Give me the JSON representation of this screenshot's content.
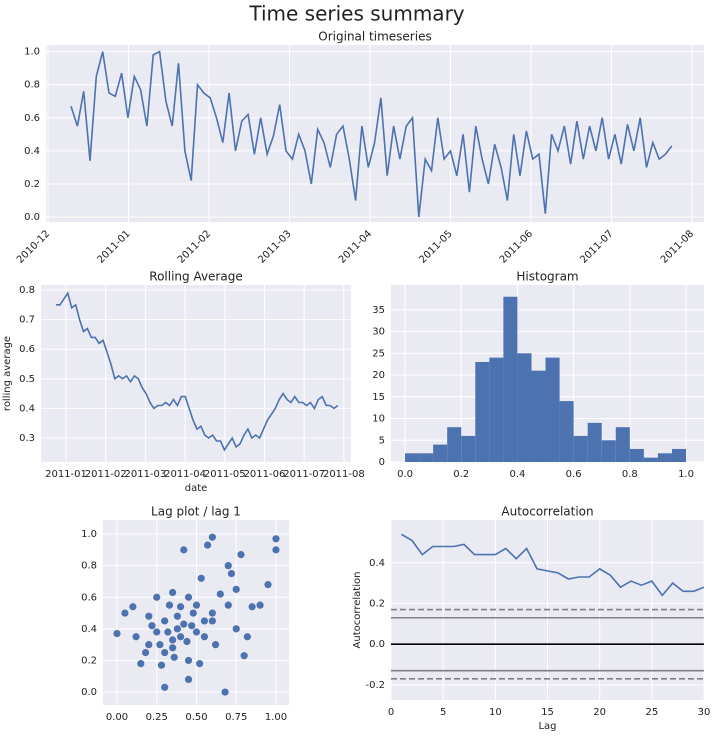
{
  "title": "Time series summary",
  "chart_data": [
    {
      "type": "line",
      "title": "Original timeseries",
      "color": "#4c72b0",
      "grid": true,
      "xticks": [
        "2010-12",
        "2011-01",
        "2011-02",
        "2011-03",
        "2011-04",
        "2011-05",
        "2011-06",
        "2011-07",
        "2011-08"
      ],
      "ylim": [
        -0.03,
        1.04
      ],
      "yticks": [
        {
          "value": 0,
          "label": "0.0"
        },
        0.2,
        0.4,
        0.6,
        0.8,
        {
          "value": 1,
          "label": "1.0"
        }
      ],
      "values": [
        0.67,
        0.55,
        0.76,
        0.34,
        0.85,
        1.0,
        0.75,
        0.73,
        0.87,
        0.6,
        0.85,
        0.77,
        0.55,
        0.98,
        1.0,
        0.7,
        0.55,
        0.93,
        0.4,
        0.22,
        0.8,
        0.75,
        0.72,
        0.6,
        0.45,
        0.75,
        0.4,
        0.58,
        0.62,
        0.38,
        0.6,
        0.38,
        0.49,
        0.68,
        0.4,
        0.35,
        0.5,
        0.4,
        0.2,
        0.53,
        0.45,
        0.3,
        0.5,
        0.55,
        0.35,
        0.1,
        0.55,
        0.3,
        0.45,
        0.72,
        0.25,
        0.55,
        0.35,
        0.55,
        0.6,
        0.0,
        0.35,
        0.28,
        0.6,
        0.35,
        0.4,
        0.25,
        0.5,
        0.15,
        0.55,
        0.35,
        0.2,
        0.44,
        0.3,
        0.1,
        0.5,
        0.25,
        0.52,
        0.35,
        0.38,
        0.02,
        0.5,
        0.4,
        0.55,
        0.32,
        0.58,
        0.35,
        0.55,
        0.4,
        0.6,
        0.35,
        0.5,
        0.32,
        0.56,
        0.4,
        0.6,
        0.3,
        0.45,
        0.35,
        0.38,
        0.43
      ]
    },
    {
      "type": "line",
      "title": "Rolling Average",
      "xlabel": "date",
      "ylabel": "rolling average",
      "color": "#4c72b0",
      "grid": true,
      "xticks": [
        "2011-01",
        "2011-02",
        "2011-03",
        "2011-04",
        "2011-05",
        "2011-06",
        "2011-07",
        "2011-08"
      ],
      "ylim": [
        0.219,
        0.817
      ],
      "yticks": [
        0.3,
        0.4,
        0.5,
        0.6,
        0.7,
        0.8
      ],
      "values": [
        0.75,
        0.75,
        0.77,
        0.79,
        0.74,
        0.75,
        0.7,
        0.66,
        0.67,
        0.64,
        0.64,
        0.62,
        0.63,
        0.59,
        0.55,
        0.5,
        0.51,
        0.5,
        0.51,
        0.49,
        0.51,
        0.5,
        0.47,
        0.45,
        0.42,
        0.4,
        0.41,
        0.41,
        0.42,
        0.41,
        0.43,
        0.41,
        0.44,
        0.44,
        0.4,
        0.36,
        0.33,
        0.34,
        0.31,
        0.3,
        0.31,
        0.29,
        0.29,
        0.26,
        0.28,
        0.3,
        0.27,
        0.28,
        0.31,
        0.33,
        0.3,
        0.31,
        0.3,
        0.33,
        0.36,
        0.38,
        0.4,
        0.43,
        0.45,
        0.43,
        0.42,
        0.44,
        0.42,
        0.42,
        0.41,
        0.42,
        0.4,
        0.43,
        0.44,
        0.41,
        0.41,
        0.4,
        0.41
      ]
    },
    {
      "type": "histogram",
      "title": "Histogram",
      "color": "#4c72b0",
      "grid": true,
      "bins": [
        0,
        0.05,
        0.1,
        0.15,
        0.2,
        0.25,
        0.3,
        0.35,
        0.4,
        0.45,
        0.5,
        0.55,
        0.6,
        0.65,
        0.7,
        0.75,
        0.8,
        0.85,
        0.9,
        0.95,
        1
      ],
      "values": [
        2,
        2,
        4,
        8,
        6,
        23,
        24,
        38,
        25,
        21,
        24,
        14,
        6,
        9,
        5,
        8,
        3,
        1,
        2,
        3
      ],
      "xlim": [
        -0.05,
        1.064
      ],
      "xticks": [
        {
          "value": 0,
          "label": "0.0"
        },
        0.2,
        0.4,
        0.6,
        0.8,
        {
          "value": 1,
          "label": "1.0"
        }
      ],
      "ylim": [
        0,
        40.7
      ],
      "yticks": [
        0,
        5,
        10,
        15,
        20,
        25,
        30,
        35
      ]
    },
    {
      "type": "scatter",
      "title": "Lag plot / lag 1",
      "color": "#4c72b0",
      "grid": true,
      "xlim": [
        -0.088,
        1.082
      ],
      "xticks": [
        {
          "value": 0,
          "label": "0.00"
        },
        0.25,
        {
          "value": 0.5,
          "label": "0.50"
        },
        0.75,
        {
          "value": 1,
          "label": "1.00"
        }
      ],
      "ylim": [
        -0.082,
        1.089
      ],
      "yticks": [
        {
          "value": 0,
          "label": "0.0"
        },
        0.2,
        0.4,
        0.6,
        0.8,
        {
          "value": 1,
          "label": "1.0"
        }
      ],
      "x": [
        0.0,
        0.05,
        0.1,
        0.12,
        0.15,
        0.18,
        0.2,
        0.2,
        0.22,
        0.25,
        0.25,
        0.27,
        0.28,
        0.3,
        0.3,
        0.32,
        0.33,
        0.35,
        0.35,
        0.36,
        0.38,
        0.38,
        0.4,
        0.4,
        0.42,
        0.42,
        0.44,
        0.45,
        0.45,
        0.47,
        0.48,
        0.5,
        0.5,
        0.52,
        0.53,
        0.55,
        0.55,
        0.57,
        0.6,
        0.6,
        0.62,
        0.65,
        0.68,
        0.7,
        0.72,
        0.75,
        0.75,
        0.78,
        0.8,
        0.82,
        0.85,
        0.9,
        0.95,
        1.0,
        1.0,
        0.7,
        0.6,
        0.35,
        0.3,
        0.45
      ],
      "y": [
        0.37,
        0.5,
        0.54,
        0.35,
        0.18,
        0.25,
        0.3,
        0.48,
        0.42,
        0.6,
        0.38,
        0.3,
        0.17,
        0.45,
        0.03,
        0.38,
        0.55,
        0.33,
        0.63,
        0.22,
        0.4,
        0.48,
        0.35,
        0.54,
        0.43,
        0.9,
        0.32,
        0.6,
        0.08,
        0.42,
        0.5,
        0.38,
        0.55,
        0.18,
        0.72,
        0.45,
        0.35,
        0.93,
        0.5,
        0.98,
        0.3,
        0.62,
        0.0,
        0.55,
        0.75,
        0.4,
        0.65,
        0.87,
        0.23,
        0.35,
        0.54,
        0.55,
        0.68,
        0.97,
        0.9,
        0.8,
        0.45,
        0.28,
        0.25,
        0.2
      ]
    },
    {
      "type": "line",
      "title": "Autocorrelation",
      "xlabel": "Lag",
      "ylabel": "Autocorrelation",
      "color": "#4c72b0",
      "grid": true,
      "xlim": [
        0,
        30
      ],
      "xticks": [
        0,
        5,
        10,
        15,
        20,
        25,
        30
      ],
      "ylim": [
        -0.274,
        0.61
      ],
      "yticks": [
        {
          "value": -0.2,
          "label": "-0.2"
        },
        {
          "value": 0,
          "label": "0.0"
        },
        0.2,
        0.4
      ],
      "hlines": [
        {
          "value": 0.17,
          "color": "#808080",
          "style": "dashed"
        },
        {
          "value": 0.13,
          "color": "#808080",
          "style": "solid"
        },
        {
          "value": 0,
          "color": "#000000",
          "style": "solid"
        },
        {
          "value": -0.13,
          "color": "#808080",
          "style": "solid"
        },
        {
          "value": -0.17,
          "color": "#808080",
          "style": "dashed"
        }
      ],
      "x": [
        1,
        2,
        3,
        4,
        5,
        6,
        7,
        8,
        9,
        10,
        11,
        12,
        13,
        14,
        15,
        16,
        17,
        18,
        19,
        20,
        21,
        22,
        23,
        24,
        25,
        26,
        27,
        28,
        29,
        30
      ],
      "values": [
        0.54,
        0.51,
        0.44,
        0.48,
        0.48,
        0.48,
        0.49,
        0.44,
        0.44,
        0.44,
        0.47,
        0.42,
        0.47,
        0.37,
        0.36,
        0.35,
        0.32,
        0.33,
        0.33,
        0.37,
        0.34,
        0.28,
        0.31,
        0.29,
        0.31,
        0.24,
        0.3,
        0.26,
        0.26,
        0.28
      ]
    }
  ]
}
